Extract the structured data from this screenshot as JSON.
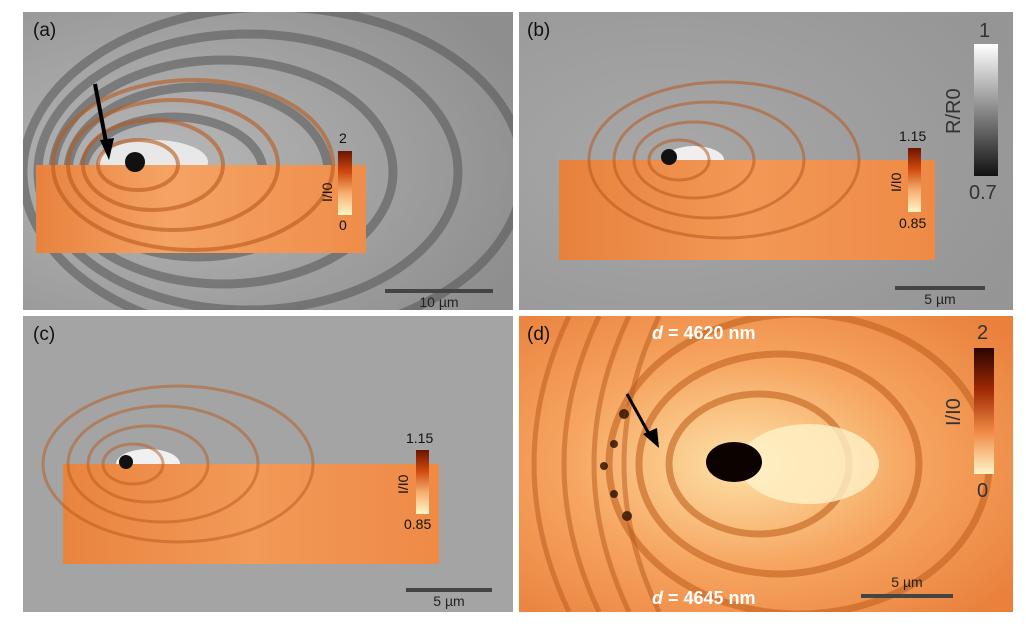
{
  "panels": {
    "a": {
      "label": "(a)",
      "scalebar": "10 µm",
      "cbar_max": "2",
      "cbar_min": "0",
      "cbar_axis": "I/I0"
    },
    "b": {
      "label": "(b)",
      "scalebar": "5 µm",
      "cbar_max": "1.15",
      "cbar_min": "0.85",
      "cbar_axis": "I/I0",
      "gray_max": "1",
      "gray_min": "0.7",
      "gray_axis": "R/R0"
    },
    "c": {
      "label": "(c)",
      "scalebar": "5 µm",
      "cbar_max": "1.15",
      "cbar_min": "0.85",
      "cbar_axis": "I/I0"
    },
    "d": {
      "label": "(d)",
      "scalebar": "5 µm",
      "cbar_max": "2",
      "cbar_min": "0",
      "cbar_axis": "I/I0",
      "d_top_var": "d",
      "d_top_val": " = 4620 nm",
      "d_bot_var": "d",
      "d_bot_val": " = 4645 nm"
    }
  },
  "colors": {
    "sim_orange": "#f08a45",
    "gray_bg": "#9a9a9a",
    "dark": "#1a0800"
  }
}
